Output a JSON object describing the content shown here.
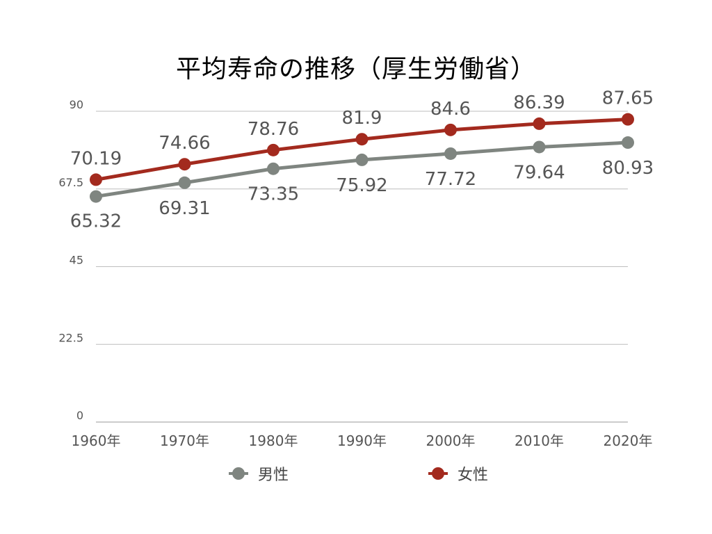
{
  "chart_data": {
    "type": "line",
    "title": "平均寿命の推移（厚生労働省）",
    "categories": [
      "1960年",
      "1970年",
      "1980年",
      "1990年",
      "2000年",
      "2010年",
      "2020年"
    ],
    "yticks": [
      "0",
      "22.5",
      "45",
      "67.5",
      "90"
    ],
    "ylim": [
      0,
      90
    ],
    "grid": true,
    "legend_position": "bottom",
    "series": [
      {
        "name": "男性",
        "values": [
          65.32,
          69.31,
          73.35,
          75.92,
          77.72,
          79.64,
          80.93
        ],
        "labels": [
          "65.32",
          "69.31",
          "73.35",
          "75.92",
          "77.72",
          "79.64",
          "80.93"
        ],
        "color": "#7f8580",
        "label_position": "below"
      },
      {
        "name": "女性",
        "values": [
          70.19,
          74.66,
          78.76,
          81.9,
          84.6,
          86.39,
          87.65
        ],
        "labels": [
          "70.19",
          "74.66",
          "78.76",
          "81.9",
          "84.6",
          "86.39",
          "87.65"
        ],
        "color": "#a32a1e",
        "label_position": "above"
      }
    ]
  }
}
